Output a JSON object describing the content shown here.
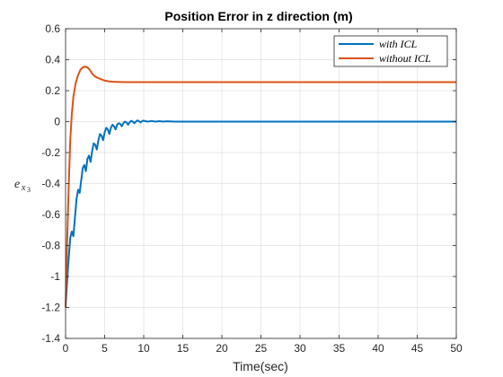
{
  "chart_data": {
    "type": "line",
    "title": "Position Error in z direction (m)",
    "xlabel": "Time(sec)",
    "ylabel_main": "e",
    "ylabel_sub": "x",
    "ylabel_subsub": "3",
    "xlim": [
      0,
      50
    ],
    "ylim": [
      -1.4,
      0.6
    ],
    "xticks": [
      0,
      5,
      10,
      15,
      20,
      25,
      30,
      35,
      40,
      45,
      50
    ],
    "xtick_labels": [
      "0",
      "5",
      "10",
      "15",
      "20",
      "25",
      "30",
      "35",
      "40",
      "45",
      "50"
    ],
    "yticks": [
      -1.4,
      -1.2,
      -1.0,
      -0.8,
      -0.6,
      -0.4,
      -0.2,
      0,
      0.2,
      0.4,
      0.6
    ],
    "ytick_labels": [
      "-1.4",
      "-1.2",
      "-1",
      "-0.8",
      "-0.6",
      "-0.4",
      "-0.2",
      "0",
      "0.2",
      "0.4",
      "0.6"
    ],
    "grid": true,
    "legend_position": "top-right",
    "series": [
      {
        "name": "with ICL",
        "color": "#0072BD",
        "x": [
          0,
          0.3,
          0.6,
          0.8,
          1.0,
          1.2,
          1.4,
          1.6,
          1.8,
          2.0,
          2.2,
          2.4,
          2.6,
          2.8,
          3.0,
          3.2,
          3.4,
          3.6,
          3.8,
          4.0,
          4.2,
          4.4,
          4.6,
          4.8,
          5.0,
          5.2,
          5.4,
          5.6,
          5.8,
          6.0,
          6.2,
          6.4,
          6.6,
          6.8,
          7.0,
          7.2,
          7.4,
          7.6,
          7.8,
          8.0,
          8.2,
          8.4,
          8.6,
          8.8,
          9.0,
          9.2,
          9.4,
          9.6,
          9.8,
          10.0,
          10.5,
          11.0,
          11.5,
          12.0,
          12.5,
          13.0,
          14.0,
          15.0,
          17.0,
          20.0,
          25.0,
          30.0,
          40.0,
          50.0
        ],
        "y": [
          -1.2,
          -0.95,
          -0.75,
          -0.71,
          -0.74,
          -0.62,
          -0.5,
          -0.44,
          -0.46,
          -0.38,
          -0.3,
          -0.28,
          -0.32,
          -0.24,
          -0.22,
          -0.26,
          -0.19,
          -0.14,
          -0.15,
          -0.18,
          -0.12,
          -0.08,
          -0.09,
          -0.12,
          -0.07,
          -0.04,
          -0.05,
          -0.08,
          -0.04,
          -0.02,
          -0.03,
          -0.05,
          -0.02,
          -0.01,
          -0.015,
          -0.03,
          -0.01,
          0.0,
          -0.005,
          -0.02,
          -0.005,
          0.005,
          0.0,
          -0.01,
          0.0,
          0.008,
          0.003,
          -0.005,
          0.004,
          0.006,
          0.0,
          0.004,
          0.0,
          0.003,
          0.0,
          0.002,
          0.0,
          0.0,
          0.0,
          0.0,
          0.0,
          0.0,
          0.0,
          0.0
        ]
      },
      {
        "name": "without ICL",
        "color": "#D95319",
        "x": [
          0,
          0.2,
          0.4,
          0.6,
          0.8,
          1.0,
          1.3,
          1.6,
          1.9,
          2.2,
          2.5,
          2.8,
          3.1,
          3.4,
          3.7,
          4.0,
          4.5,
          5.0,
          5.5,
          6.0,
          7.0,
          8.0,
          10.0,
          15.0,
          20.0,
          30.0,
          40.0,
          50.0
        ],
        "y": [
          -1.2,
          -0.78,
          -0.42,
          -0.12,
          0.05,
          0.16,
          0.25,
          0.3,
          0.335,
          0.35,
          0.355,
          0.35,
          0.335,
          0.31,
          0.295,
          0.285,
          0.275,
          0.265,
          0.26,
          0.258,
          0.256,
          0.255,
          0.255,
          0.255,
          0.255,
          0.255,
          0.255,
          0.255
        ]
      }
    ]
  }
}
